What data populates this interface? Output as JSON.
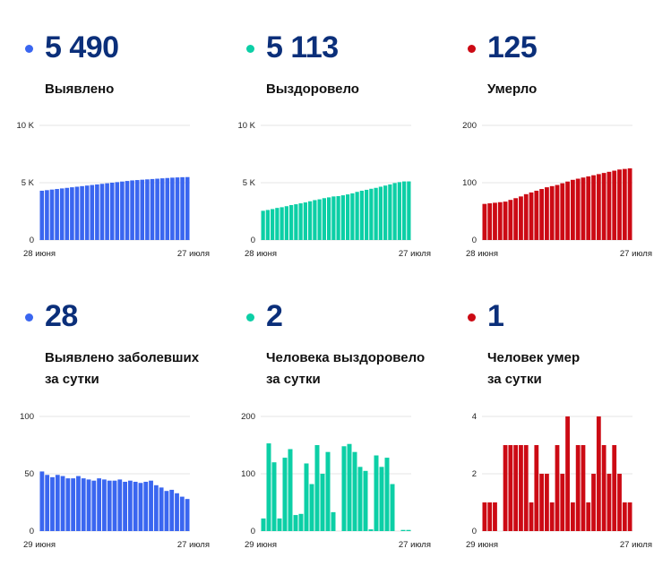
{
  "panels": [
    {
      "id": "detected-total",
      "value": "5 490",
      "label_lines": [
        "Выявлено"
      ],
      "color": "#3a66f0",
      "chart": {
        "yticks": [
          "10 K",
          "5 K",
          "0"
        ],
        "ymax": 10000,
        "xstart": "28 июня",
        "xend": "27 июля"
      }
    },
    {
      "id": "recovered-total",
      "value": "5 113",
      "label_lines": [
        "Выздоровело"
      ],
      "color": "#0ccfa6",
      "chart": {
        "yticks": [
          "10 K",
          "5 K",
          "0"
        ],
        "ymax": 10000,
        "xstart": "28 июня",
        "xend": "27 июля"
      }
    },
    {
      "id": "deaths-total",
      "value": "125",
      "label_lines": [
        "Умерло"
      ],
      "color": "#cc0a14",
      "chart": {
        "yticks": [
          "200",
          "100",
          "0"
        ],
        "ymax": 200,
        "xstart": "28 июня",
        "xend": "27 июля"
      }
    },
    {
      "id": "detected-daily",
      "value": "28",
      "label_lines": [
        "Выявлено заболевших",
        "за сутки"
      ],
      "color": "#3a66f0",
      "chart": {
        "yticks": [
          "100",
          "50",
          "0"
        ],
        "ymax": 100,
        "xstart": "29 июня",
        "xend": "27 июля"
      }
    },
    {
      "id": "recovered-daily",
      "value": "2",
      "label_lines": [
        "Человека выздоровело",
        "за сутки"
      ],
      "color": "#0ccfa6",
      "chart": {
        "yticks": [
          "200",
          "100",
          "0"
        ],
        "ymax": 200,
        "xstart": "29 июня",
        "xend": "27 июля"
      }
    },
    {
      "id": "deaths-daily",
      "value": "1",
      "label_lines": [
        "Человек умер",
        "за сутки"
      ],
      "color": "#cc0a14",
      "chart": {
        "yticks": [
          "4",
          "2",
          "0"
        ],
        "ymax": 4,
        "xstart": "29 июня",
        "xend": "27 июля"
      }
    }
  ],
  "chart_data": [
    {
      "type": "bar",
      "x_range": [
        "28 июня",
        "27 июля"
      ],
      "ylim": [
        0,
        10000
      ],
      "values": [
        4300,
        4350,
        4400,
        4450,
        4500,
        4550,
        4600,
        4650,
        4700,
        4750,
        4800,
        4850,
        4900,
        4950,
        5000,
        5050,
        5100,
        5150,
        5200,
        5230,
        5260,
        5290,
        5320,
        5350,
        5380,
        5410,
        5440,
        5460,
        5480,
        5490
      ]
    },
    {
      "type": "bar",
      "x_range": [
        "28 июня",
        "27 июля"
      ],
      "ylim": [
        0,
        10000
      ],
      "values": [
        2550,
        2620,
        2700,
        2800,
        2860,
        2950,
        3050,
        3120,
        3200,
        3280,
        3380,
        3480,
        3550,
        3650,
        3720,
        3800,
        3830,
        3900,
        3980,
        4070,
        4200,
        4300,
        4380,
        4470,
        4550,
        4650,
        4750,
        4850,
        4970,
        5050,
        5110,
        5113
      ]
    },
    {
      "type": "bar",
      "x_range": [
        "28 июня",
        "27 июля"
      ],
      "ylim": [
        0,
        200
      ],
      "values": [
        63,
        64,
        65,
        66,
        67,
        70,
        73,
        76,
        80,
        83,
        86,
        89,
        92,
        94,
        96,
        99,
        102,
        105,
        107,
        109,
        111,
        113,
        115,
        117,
        119,
        121,
        123,
        124,
        125
      ]
    },
    {
      "type": "bar",
      "x_range": [
        "29 июня",
        "27 июля"
      ],
      "ylim": [
        0,
        100
      ],
      "values": [
        52,
        49,
        47,
        49,
        48,
        46,
        46,
        48,
        46,
        45,
        44,
        46,
        45,
        44,
        44,
        45,
        43,
        44,
        43,
        42,
        43,
        44,
        40,
        38,
        35,
        36,
        33,
        30,
        28
      ]
    },
    {
      "type": "bar",
      "x_range": [
        "29 июня",
        "27 июля"
      ],
      "ylim": [
        0,
        200
      ],
      "values": [
        22,
        153,
        120,
        22,
        128,
        143,
        28,
        30,
        118,
        82,
        150,
        100,
        138,
        33,
        0,
        148,
        152,
        138,
        112,
        105,
        3,
        132,
        112,
        128,
        82,
        0,
        2,
        2
      ]
    },
    {
      "type": "bar",
      "x_range": [
        "29 июня",
        "27 июля"
      ],
      "ylim": [
        0,
        4
      ],
      "values": [
        1,
        1,
        1,
        0,
        3,
        3,
        3,
        3,
        3,
        1,
        3,
        2,
        2,
        1,
        3,
        2,
        4,
        1,
        3,
        3,
        1,
        2,
        4,
        3,
        2,
        3,
        2,
        1,
        1
      ]
    }
  ]
}
